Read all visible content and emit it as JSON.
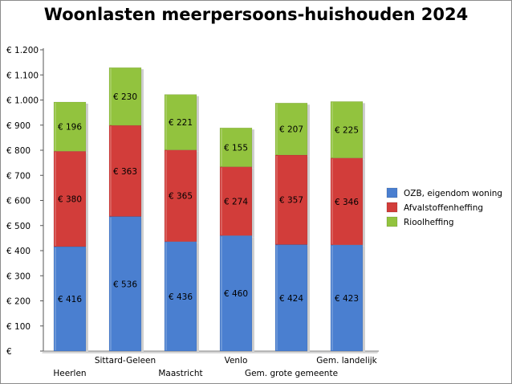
{
  "chart_data": {
    "type": "bar",
    "stacked": true,
    "title": "Woonlasten meerpersoons-huishouden 2024",
    "xlabel": "",
    "ylabel": "",
    "ylim": [
      0,
      1200
    ],
    "y_ticks": [
      "€",
      "€ 100",
      "€ 200",
      "€ 300",
      "€ 400",
      "€ 500",
      "€ 600",
      "€ 700",
      "€ 800",
      "€ 900",
      "€ 1.000",
      "€ 1.100",
      "€ 1.200"
    ],
    "grid": false,
    "legend_position": "right",
    "categories": [
      "Heerlen",
      "Sittard-Geleen",
      "Maastricht",
      "Venlo",
      "Gem. grote gemeente",
      "Gem. landelijk"
    ],
    "series": [
      {
        "name": "OZB, eigendom woning",
        "color": "#4a7fd0",
        "values": [
          416,
          536,
          436,
          460,
          424,
          423
        ],
        "labels": [
          "€ 416",
          "€ 536",
          "€ 436",
          "€ 460",
          "€ 424",
          "€ 423"
        ]
      },
      {
        "name": "Afvalstoffenheffing",
        "color": "#d23d3a",
        "values": [
          380,
          363,
          365,
          274,
          357,
          346
        ],
        "labels": [
          "€ 380",
          "€ 363",
          "€ 365",
          "€ 274",
          "€ 357",
          "€ 346"
        ]
      },
      {
        "name": "Rioolheffing",
        "color": "#92c33e",
        "values": [
          196,
          230,
          221,
          155,
          207,
          225
        ],
        "labels": [
          "€ 196",
          "€ 230",
          "€ 221",
          "€ 155",
          "€ 207",
          "€ 225"
        ]
      }
    ]
  }
}
